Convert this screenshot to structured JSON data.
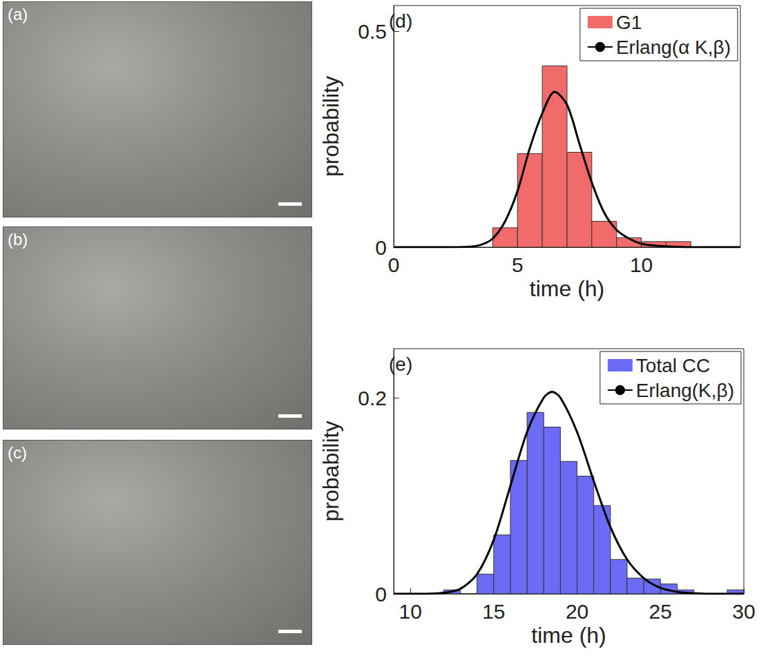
{
  "image_panels": [
    {
      "label": "(a)"
    },
    {
      "label": "(b)"
    },
    {
      "label": "(c)"
    }
  ],
  "chart_data": [
    {
      "type": "histogram",
      "panel": "(d)",
      "xlabel": "time (h)",
      "ylabel": "probability",
      "xlim": [
        0,
        14
      ],
      "xticks": [
        0,
        5,
        10
      ],
      "ylim": [
        0,
        0.56
      ],
      "yticks": [
        0,
        0.5
      ],
      "grid": false,
      "legend": "upper right",
      "series": [
        {
          "name": "G1",
          "type": "histogram",
          "color": "#f26b6b",
          "bins": [
            4,
            5,
            6,
            7,
            8,
            9,
            10,
            11,
            12
          ],
          "counts": [
            0.045,
            0.217,
            0.42,
            0.22,
            0.06,
            0.022,
            0.013,
            0.013
          ]
        },
        {
          "name": "Erlang(α K,β)",
          "type": "line",
          "color": "#000000",
          "x": [
            0,
            2,
            3,
            3.5,
            4,
            4.5,
            5,
            5.5,
            6,
            6.5,
            7,
            7.5,
            8,
            8.5,
            9,
            9.5,
            10,
            10.5,
            11,
            12,
            14
          ],
          "values": [
            0,
            0,
            0.001,
            0.005,
            0.02,
            0.06,
            0.13,
            0.23,
            0.31,
            0.36,
            0.33,
            0.24,
            0.15,
            0.08,
            0.04,
            0.02,
            0.008,
            0.004,
            0.002,
            0,
            0
          ]
        }
      ]
    },
    {
      "type": "histogram",
      "panel": "(e)",
      "xlabel": "time (h)",
      "ylabel": "probability",
      "xlim": [
        9,
        30
      ],
      "xticks": [
        10,
        15,
        20,
        25,
        30
      ],
      "ylim": [
        0,
        0.25
      ],
      "yticks": [
        0,
        0.2
      ],
      "grid": false,
      "legend": "upper right",
      "series": [
        {
          "name": "Total CC",
          "type": "histogram",
          "color": "#6b6bf5",
          "bins": [
            12,
            13,
            14,
            15,
            16,
            17,
            18,
            19,
            20,
            21,
            22,
            23,
            24,
            25,
            26,
            27,
            28,
            29,
            30
          ],
          "counts": [
            0.004,
            0,
            0.02,
            0.06,
            0.136,
            0.185,
            0.17,
            0.135,
            0.12,
            0.09,
            0.035,
            0.016,
            0.015,
            0.01,
            0.004,
            0,
            0,
            0.004
          ]
        },
        {
          "name": "Erlang(K,β)",
          "type": "line",
          "color": "#000000",
          "x": [
            9,
            11,
            12,
            13,
            14,
            15,
            16,
            17,
            18,
            18.5,
            19,
            20,
            21,
            22,
            23,
            24,
            25,
            26,
            27,
            28,
            30
          ],
          "values": [
            0,
            0,
            0.001,
            0.005,
            0.02,
            0.055,
            0.11,
            0.165,
            0.2,
            0.206,
            0.2,
            0.165,
            0.115,
            0.068,
            0.035,
            0.016,
            0.006,
            0.002,
            0.0005,
            0,
            0
          ]
        }
      ]
    }
  ]
}
